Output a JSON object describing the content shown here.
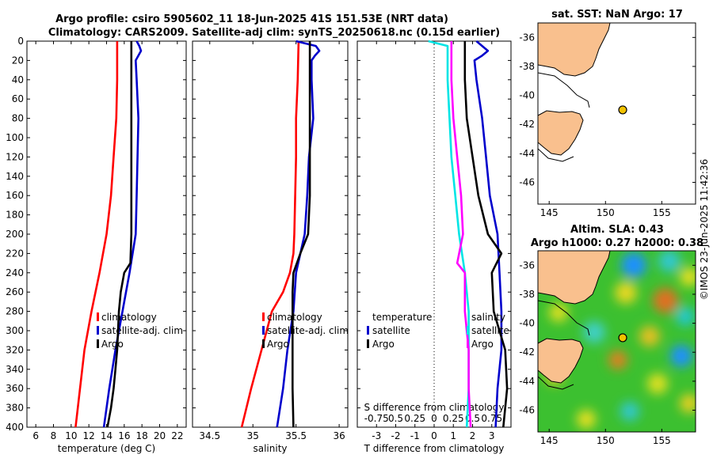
{
  "title_line1": "Argo profile: csiro 5905602_11 18-Jun-2025 41S 151.53E (NRT data)",
  "title_line2": "Climatology: CARS2009. Satellite-adj clim: synTS_20250618.nc (0.15d earlier)",
  "watermark": "©IMOS 23-Jun-2025 11:42:36",
  "colors": {
    "climatology": "#ff0000",
    "satellite": "#0000cc",
    "argo": "#000000",
    "s_clim": "#ff00ff",
    "s_sat": "#00e5e5",
    "land": "#f9c08e"
  },
  "chart_data": [
    {
      "type": "line",
      "id": "temperature",
      "xlabel": "temperature (deg C)",
      "xlim": [
        5,
        23
      ],
      "xticks": [
        6,
        8,
        10,
        12,
        14,
        16,
        18,
        20,
        22
      ],
      "ylim": [
        0,
        400
      ],
      "yticks": [
        0,
        20,
        40,
        60,
        80,
        100,
        120,
        140,
        160,
        180,
        200,
        220,
        240,
        260,
        280,
        300,
        320,
        340,
        360,
        380,
        400
      ],
      "legend": [
        "climatology",
        "satellite-adj. clim",
        "Argo"
      ],
      "series": [
        {
          "name": "climatology",
          "color": "#ff0000",
          "depth": [
            0,
            40,
            80,
            120,
            160,
            200,
            240,
            280,
            320,
            360,
            400
          ],
          "values": [
            15.2,
            15.2,
            15.1,
            14.8,
            14.5,
            14.0,
            13.2,
            12.3,
            11.5,
            11.0,
            10.5
          ]
        },
        {
          "name": "satellite-adj. clim",
          "color": "#0000cc",
          "depth": [
            0,
            5,
            10,
            15,
            20,
            40,
            80,
            120,
            160,
            200,
            240,
            280,
            320,
            360,
            400
          ],
          "values": [
            17.4,
            17.7,
            17.9,
            17.6,
            17.3,
            17.4,
            17.6,
            17.5,
            17.4,
            17.3,
            16.6,
            15.8,
            15.0,
            14.3,
            13.7
          ]
        },
        {
          "name": "Argo",
          "color": "#000000",
          "depth": [
            0,
            40,
            80,
            120,
            160,
            200,
            230,
            240,
            260,
            280,
            300,
            320,
            340,
            360,
            380,
            400
          ],
          "values": [
            16.8,
            16.8,
            16.8,
            16.8,
            16.8,
            16.8,
            16.7,
            16.0,
            15.6,
            15.4,
            15.3,
            15.2,
            15.0,
            14.8,
            14.5,
            14.1
          ]
        }
      ]
    },
    {
      "type": "line",
      "id": "salinity",
      "xlabel": "salinity",
      "xlim": [
        34.3,
        36.1
      ],
      "xticks": [
        34.5,
        35,
        35.5,
        36
      ],
      "ylim": [
        0,
        400
      ],
      "legend": [
        "climatology",
        "satellite-adj. clim",
        "Argo"
      ],
      "series": [
        {
          "name": "climatology",
          "color": "#ff0000",
          "depth": [
            0,
            40,
            80,
            120,
            160,
            200,
            220,
            240,
            260,
            280,
            320,
            360,
            400
          ],
          "values": [
            35.53,
            35.52,
            35.5,
            35.5,
            35.49,
            35.48,
            35.47,
            35.43,
            35.35,
            35.22,
            35.1,
            34.98,
            34.87
          ]
        },
        {
          "name": "satellite-adj. clim",
          "color": "#0000cc",
          "depth": [
            0,
            5,
            10,
            15,
            20,
            40,
            80,
            120,
            160,
            200,
            240,
            280,
            320,
            360,
            400
          ],
          "values": [
            35.5,
            35.73,
            35.77,
            35.72,
            35.68,
            35.68,
            35.7,
            35.65,
            35.63,
            35.6,
            35.5,
            35.47,
            35.4,
            35.35,
            35.28
          ]
        },
        {
          "name": "Argo",
          "color": "#000000",
          "depth": [
            0,
            40,
            80,
            120,
            160,
            200,
            220,
            240,
            260,
            280,
            300,
            320,
            360,
            400
          ],
          "values": [
            35.66,
            35.66,
            35.66,
            35.66,
            35.66,
            35.64,
            35.55,
            35.47,
            35.46,
            35.46,
            35.46,
            35.46,
            35.46,
            35.47
          ]
        }
      ]
    },
    {
      "type": "line",
      "id": "difference",
      "xlabel": "T difference from climatology",
      "xlabel2": "S difference from climatology",
      "xlim": [
        -4,
        4
      ],
      "xticks": [
        -3,
        -2,
        -1,
        0,
        1,
        2,
        3
      ],
      "x2ticks": [
        "-0.75",
        "0.5",
        "0.25",
        "0",
        "0.25",
        "0.5",
        "0.75"
      ],
      "ylim": [
        0,
        400
      ],
      "legend_t": [
        "temperature",
        "satellite",
        "Argo"
      ],
      "legend_s": [
        "salinity",
        "satellite",
        "Argo"
      ],
      "series": [
        {
          "name": "T satellite",
          "color": "#0000cc",
          "depth": [
            0,
            5,
            10,
            15,
            20,
            40,
            80,
            120,
            160,
            200,
            240,
            280,
            320,
            360,
            400
          ],
          "values": [
            2.2,
            2.5,
            2.8,
            2.5,
            2.1,
            2.2,
            2.5,
            2.7,
            2.9,
            3.3,
            3.4,
            3.5,
            3.5,
            3.3,
            3.2
          ]
        },
        {
          "name": "T Argo",
          "color": "#000000",
          "depth": [
            0,
            40,
            80,
            120,
            160,
            200,
            220,
            240,
            280,
            320,
            360,
            400
          ],
          "values": [
            1.6,
            1.6,
            1.7,
            2.0,
            2.3,
            2.8,
            3.5,
            3.0,
            3.1,
            3.7,
            3.8,
            3.6
          ]
        },
        {
          "name": "S satellite",
          "color": "#00e5e5",
          "depth": [
            0,
            5,
            40,
            80,
            120,
            160,
            200,
            240,
            280,
            320,
            360,
            400
          ],
          "values": [
            -0.3,
            0.7,
            0.7,
            0.8,
            0.9,
            1.1,
            1.3,
            1.6,
            1.8,
            1.8,
            1.8,
            1.7
          ]
        },
        {
          "name": "S Argo",
          "color": "#ff00ff",
          "depth": [
            0,
            40,
            80,
            120,
            160,
            200,
            230,
            240,
            280,
            300,
            320,
            360,
            400
          ],
          "values": [
            0.9,
            0.9,
            1.0,
            1.2,
            1.4,
            1.5,
            1.2,
            1.6,
            1.6,
            1.7,
            1.8,
            1.8,
            1.9
          ]
        }
      ]
    },
    {
      "type": "map",
      "id": "sst_map",
      "title": "sat. SST: NaN Argo: 17",
      "xlim": [
        144,
        158
      ],
      "xticks": [
        145,
        150,
        155
      ],
      "ylim": [
        -47.5,
        -35
      ],
      "yticks": [
        -36,
        -38,
        -40,
        -42,
        -44,
        -46
      ],
      "marker": {
        "lon": 151.53,
        "lat": -41.0
      }
    },
    {
      "type": "map",
      "id": "sla_map",
      "title": "Altim. SLA: 0.43",
      "subtitle": "Argo h1000: 0.27 h2000: 0.38",
      "xlim": [
        144,
        158
      ],
      "xticks": [
        145,
        150,
        155
      ],
      "ylim": [
        -47.5,
        -35
      ],
      "yticks": [
        -36,
        -38,
        -40,
        -42,
        -44,
        -46
      ],
      "marker": {
        "lon": 151.53,
        "lat": -41.0
      }
    }
  ]
}
